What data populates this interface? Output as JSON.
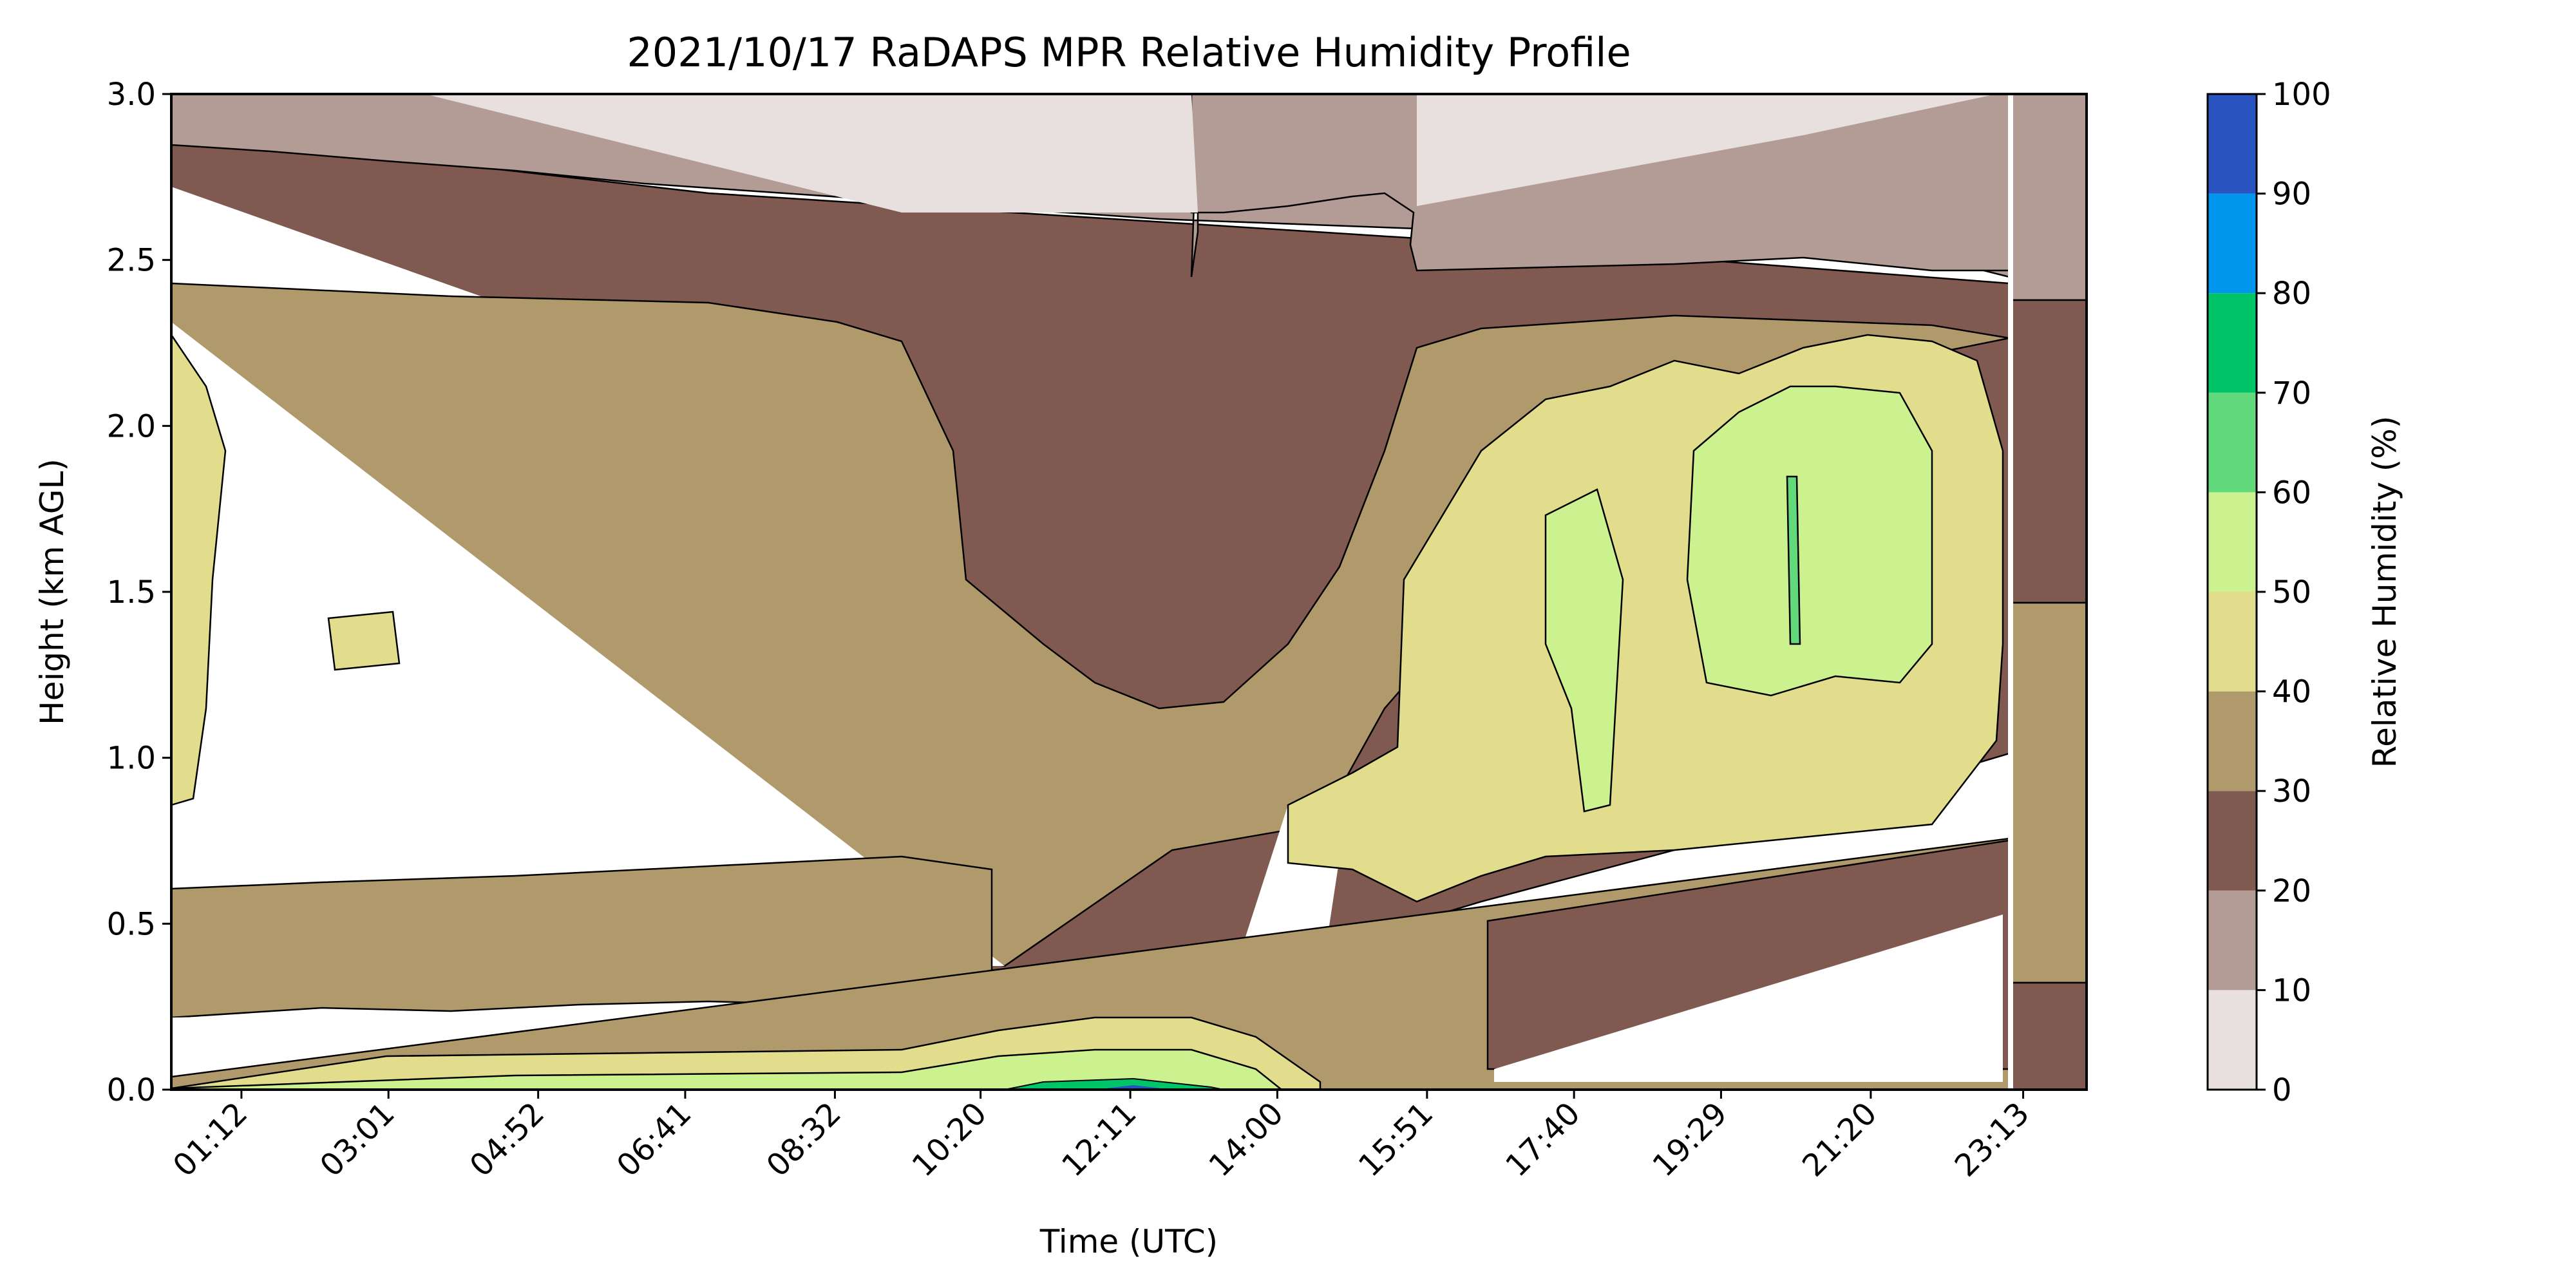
{
  "chart_data": {
    "type": "heatmap",
    "title": "2021/10/17 RaDAPS MPR Relative Humidity Profile",
    "xlabel": "Time (UTC)",
    "ylabel": "Height (km AGL)",
    "xlim": [
      "00:20",
      "24:00"
    ],
    "ylim": [
      0,
      3.0
    ],
    "x_tick_labels": [
      "01:12",
      "03:01",
      "04:52",
      "06:41",
      "08:32",
      "10:20",
      "12:11",
      "14:00",
      "15:51",
      "17:40",
      "19:29",
      "21:20",
      "23:13"
    ],
    "y_tick_labels": [
      "0.0",
      "0.5",
      "1.0",
      "1.5",
      "2.0",
      "2.5",
      "3.0"
    ],
    "colorbar": {
      "label": "Relative Humidity (%)",
      "levels": [
        0,
        10,
        20,
        30,
        40,
        50,
        60,
        70,
        80,
        90,
        100
      ],
      "tick_labels": [
        "0",
        "10",
        "20",
        "30",
        "40",
        "50",
        "60",
        "70",
        "80",
        "90",
        "100"
      ],
      "colors": [
        "#e8e0df",
        "#b39c96",
        "#805a50",
        "#b09a6c",
        "#e2dd8c",
        "#cbf28e",
        "#62da7c",
        "#00c568",
        "#0196ee",
        "#2853c0"
      ]
    },
    "contour_regions": [
      {
        "level": "0-10",
        "time_start": "02:40",
        "time_end": "23:00",
        "height_start": 2.3,
        "height_end": 3.0
      },
      {
        "level": "10-20",
        "time_start": "00:20",
        "time_end": "24:00",
        "height_start": 2.3,
        "height_end": 3.0
      },
      {
        "level": "20-30",
        "time_start": "00:20",
        "time_end": "24:00",
        "height_start": 0.3,
        "height_end": 2.8
      },
      {
        "level": "30-40",
        "time_start": "00:20",
        "time_end": "24:00",
        "height_start": 0.0,
        "height_end": 2.4
      },
      {
        "level": "40-50",
        "time_start": "15:00",
        "time_end": "23:00",
        "height_start": 0.55,
        "height_end": 2.3
      },
      {
        "level": "50-60",
        "time_start": "17:00",
        "time_end": "22:00",
        "height_start": 0.8,
        "height_end": 2.1
      },
      {
        "level": "60-70",
        "time_start": "20:10",
        "time_end": "20:20",
        "height_start": 1.3,
        "height_end": 1.8
      },
      {
        "level": "70-100",
        "time_start": "11:00",
        "time_end": "13:00",
        "height_start": 0.0,
        "height_end": 0.05
      }
    ]
  }
}
